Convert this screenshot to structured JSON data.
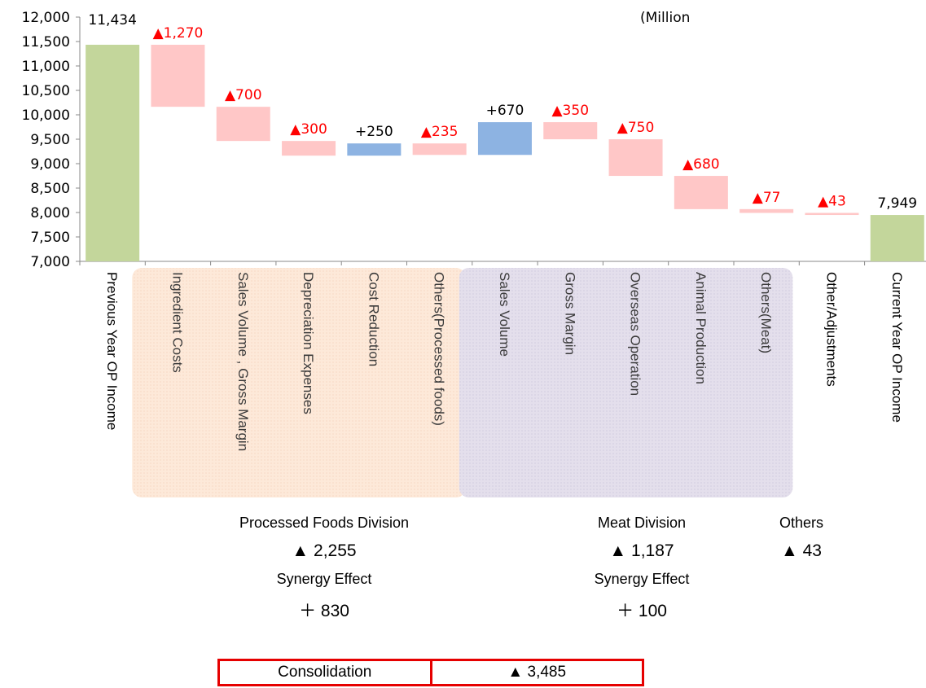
{
  "unit_label": "(Million",
  "chart_data": {
    "type": "bar",
    "subtype": "waterfall",
    "ylim": [
      7000,
      12000
    ],
    "yticks": [
      "7,000",
      "7,500",
      "8,000",
      "8,500",
      "9,000",
      "9,500",
      "10,000",
      "10,500",
      "11,000",
      "11,500",
      "12,000"
    ],
    "grid": false,
    "categories": [
      "Previous Year OP Income",
      "Ingredient Costs",
      "Sales Volume , Gross Margin",
      "Depreciation  Expenses",
      "Cost Reduction",
      "Others(Processed foods)",
      "Sales Volume",
      "Gross Margin",
      "Overseas Operation",
      "Animal Production",
      "Others(Meat)",
      "Other/Adjustments",
      "Current Year OP Income"
    ],
    "bars": [
      {
        "kind": "total",
        "start": 7000,
        "end": 11434,
        "label": "11,434"
      },
      {
        "kind": "decrease",
        "start": 11434,
        "end": 10164,
        "label": "▲1,270"
      },
      {
        "kind": "decrease",
        "start": 10164,
        "end": 9464,
        "label": "▲700"
      },
      {
        "kind": "decrease",
        "start": 9464,
        "end": 9164,
        "label": "▲300"
      },
      {
        "kind": "increase",
        "start": 9164,
        "end": 9414,
        "label": "+250"
      },
      {
        "kind": "decrease",
        "start": 9414,
        "end": 9179,
        "label": "▲235"
      },
      {
        "kind": "increase",
        "start": 9179,
        "end": 9849,
        "label": "+670"
      },
      {
        "kind": "decrease",
        "start": 9849,
        "end": 9499,
        "label": "▲350"
      },
      {
        "kind": "decrease",
        "start": 9499,
        "end": 8749,
        "label": "▲750"
      },
      {
        "kind": "decrease",
        "start": 8749,
        "end": 8069,
        "label": "▲680"
      },
      {
        "kind": "decrease",
        "start": 8069,
        "end": 7992,
        "label": "▲77"
      },
      {
        "kind": "decrease",
        "start": 7992,
        "end": 7949,
        "label": "▲43"
      },
      {
        "kind": "total",
        "start": 7000,
        "end": 7949,
        "label": "7,949"
      }
    ],
    "colors": {
      "total": "#c3d69b",
      "decrease": "#ffc7c7",
      "increase": "#8db3e2",
      "decrease_label": "#ff0000",
      "increase_label": "#000000"
    },
    "groups": [
      {
        "name": "processed-foods",
        "from": 1,
        "to": 5,
        "fill": "#fde9d9"
      },
      {
        "name": "meat",
        "from": 6,
        "to": 10,
        "fill": "#e4dfec"
      }
    ]
  },
  "summary": {
    "processed": {
      "name": "Processed Foods Division",
      "value": "▲ 2,255",
      "synergy_name": "Synergy Effect",
      "synergy_value": "＋ 830"
    },
    "meat": {
      "name": "Meat Division",
      "value": "▲ 1,187",
      "synergy_name": "Synergy Effect",
      "synergy_value": "＋ 100"
    },
    "others": {
      "name": "Others",
      "value": "▲ 43"
    },
    "consolidation": {
      "label": "Consolidation",
      "value": "▲ 3,485"
    }
  }
}
